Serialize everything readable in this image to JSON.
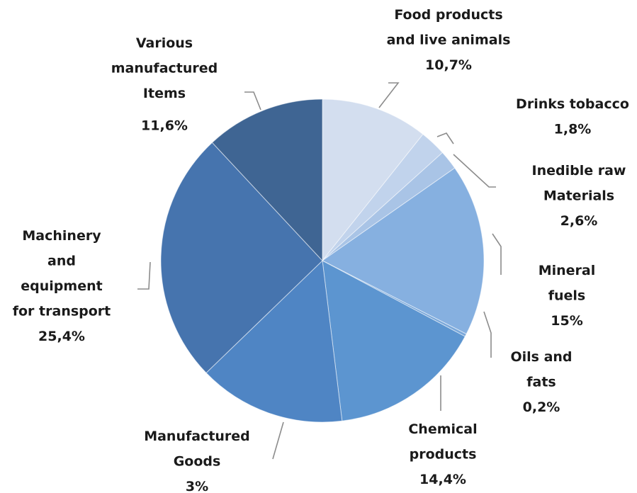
{
  "chart_data": {
    "type": "pie",
    "title": "",
    "start_angle_deg": 0,
    "direction": "clockwise",
    "slices": [
      {
        "label_lines": [
          "Food products",
          "and live animals"
        ],
        "value_label": "10,7%",
        "value": 10.7,
        "color": "#d3deef"
      },
      {
        "label_lines": [
          "Drinks tobacco"
        ],
        "value_label": "1,8%",
        "value": 1.8,
        "color": "#c1d3ec"
      },
      {
        "label_lines": [
          "Inedible raw",
          "Materials"
        ],
        "value_label": "2,6%",
        "value": 2.6,
        "color": "#a9c4e6"
      },
      {
        "label_lines": [
          "Mineral",
          "fuels"
        ],
        "value_label": "15%",
        "value": 15.0,
        "color": "#86b0e0"
      },
      {
        "label_lines": [
          "Oils and",
          "fats"
        ],
        "value_label": "0,2%",
        "value": 0.2,
        "color": "#7aa8da"
      },
      {
        "label_lines": [
          "Chemical",
          "products"
        ],
        "value_label": "14,4%",
        "value": 14.4,
        "color": "#5c95d0"
      },
      {
        "label_lines": [
          "Manufactured",
          "Goods"
        ],
        "value_label": "3%",
        "value": 3.0,
        "color": "#4f85c4"
      },
      {
        "label_lines": [
          "Machinery",
          "and",
          "equipment",
          "for transport"
        ],
        "value_label": "25,4%",
        "value": 25.4,
        "color": "#4674ae"
      },
      {
        "label_lines": [
          "Various",
          "manufactured",
          "Items"
        ],
        "value_label": "11,6%",
        "value": 11.6,
        "color": "#3f6593"
      }
    ]
  }
}
